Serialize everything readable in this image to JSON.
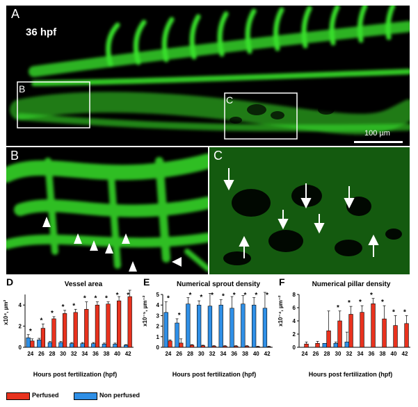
{
  "figure": {
    "panel_a": {
      "letter": "A",
      "stage": "36 hpf",
      "scale": "100 µm",
      "inset_b": "B",
      "inset_c": "C"
    },
    "panel_b": {
      "letter": "B"
    },
    "panel_c": {
      "letter": "C"
    },
    "legend": {
      "perfused": "Perfused",
      "non_perfused": "Non perfused"
    },
    "colors": {
      "perfused": "#e8321e",
      "non_perfused": "#2f8fe6",
      "vessel": "#39e02a"
    }
  },
  "charts": [
    {
      "letter": "D",
      "title": "Vessel area",
      "xlabel": "Hours post fertilization (hpf)",
      "unit": "x10⁴, µm²"
    },
    {
      "letter": "E",
      "title": "Numerical sprout density",
      "xlabel": "Hours post fertilization (hpf)",
      "unit": "x10⁻⁵, µm⁻²"
    },
    {
      "letter": "F",
      "title": "Numerical pillar density",
      "xlabel": "Hours post fertilization (hpf)",
      "unit": "x10⁻⁴, µm⁻²"
    }
  ],
  "chart_data": [
    {
      "type": "bar",
      "title": "Vessel area",
      "xlabel": "Hours post fertilization (hpf)",
      "ylabel": "x10⁴, µm²",
      "categories": [
        "24",
        "26",
        "28",
        "30",
        "32",
        "34",
        "36",
        "38",
        "40",
        "42"
      ],
      "ylim": [
        0,
        5
      ],
      "yticks": [
        0,
        2,
        4
      ],
      "series": [
        {
          "name": "Perfused",
          "values": [
            0.6,
            1.8,
            2.7,
            3.2,
            3.3,
            3.6,
            4.0,
            4.1,
            4.4,
            4.8
          ],
          "err": [
            0.2,
            0.4,
            0.2,
            0.3,
            0.3,
            0.7,
            0.3,
            0.2,
            0.4,
            0.6
          ]
        },
        {
          "name": "Non perfused",
          "values": [
            0.9,
            0.7,
            0.45,
            0.45,
            0.35,
            0.35,
            0.35,
            0.3,
            0.3,
            0.2
          ],
          "err": [
            0.3,
            0.15,
            0.1,
            0.1,
            0.1,
            0.1,
            0.1,
            0.1,
            0.1,
            0.05
          ]
        }
      ],
      "significance": [
        "*",
        "*",
        "*",
        "*",
        "*",
        "*",
        "*",
        "*",
        "*",
        "*"
      ]
    },
    {
      "type": "bar",
      "title": "Numerical sprout density",
      "xlabel": "Hours post fertilization (hpf)",
      "ylabel": "x10⁻⁵, µm⁻²",
      "categories": [
        "24",
        "26",
        "28",
        "30",
        "32",
        "34",
        "36",
        "38",
        "40",
        "42"
      ],
      "ylim": [
        0,
        5
      ],
      "yticks": [
        0,
        1,
        2,
        3,
        4,
        5
      ],
      "series": [
        {
          "name": "Perfused",
          "values": [
            0.6,
            0.4,
            0.2,
            0.15,
            0.1,
            0.1,
            0.1,
            0.1,
            0.05,
            0.05
          ],
          "err": [
            0.1,
            0.4,
            0.05,
            0.05,
            0.05,
            0.05,
            0.05,
            0.05,
            0.05,
            0.05
          ]
        },
        {
          "name": "Non perfused",
          "values": [
            3.3,
            2.3,
            4.1,
            4.0,
            3.9,
            4.0,
            3.7,
            4.1,
            4.0,
            3.7
          ],
          "err": [
            1.0,
            0.4,
            0.6,
            0.4,
            1.2,
            0.5,
            1.1,
            0.8,
            0.7,
            1.5
          ]
        }
      ],
      "significance": [
        "*",
        "*",
        "*",
        "*",
        "*",
        "*",
        "*",
        "*",
        "*",
        "*"
      ]
    },
    {
      "type": "bar",
      "title": "Numerical pillar density",
      "xlabel": "Hours post fertilization (hpf)",
      "ylabel": "x10⁻⁴, µm⁻²",
      "categories": [
        "24",
        "26",
        "28",
        "30",
        "32",
        "34",
        "36",
        "38",
        "40",
        "42"
      ],
      "ylim": [
        0,
        8
      ],
      "yticks": [
        0,
        2,
        4,
        6,
        8
      ],
      "series": [
        {
          "name": "Perfused",
          "values": [
            0.5,
            0.6,
            2.5,
            4.0,
            5.0,
            5.3,
            6.6,
            4.3,
            3.3,
            3.6
          ],
          "err": [
            0.3,
            0.3,
            3.0,
            1.5,
            1.2,
            1.0,
            0.8,
            2.0,
            1.5,
            1.2
          ]
        },
        {
          "name": "Non perfused",
          "values": [
            0.0,
            0.0,
            0.6,
            0.6,
            0.8,
            0.0,
            0.0,
            0.0,
            0.0,
            0.0
          ],
          "err": [
            0,
            0,
            0,
            0.2,
            1.5,
            0,
            0,
            0,
            0,
            0
          ]
        }
      ],
      "significance": [
        "",
        "",
        "",
        "*",
        "*",
        "*",
        "*",
        "*",
        "*",
        "*"
      ]
    }
  ]
}
